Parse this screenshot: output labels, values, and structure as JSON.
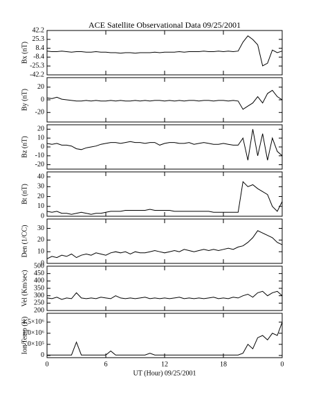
{
  "chart_data": [
    {
      "type": "line",
      "title": "ACE Satellite Observational Data  09/25/2001",
      "ylabel": "Bx (nT)",
      "color": "#000000",
      "x": [
        0,
        0.5,
        1,
        1.5,
        2,
        2.5,
        3,
        3.5,
        4,
        4.5,
        5,
        5.5,
        6,
        6.5,
        7,
        7.5,
        8,
        8.5,
        9,
        9.5,
        10,
        10.5,
        11,
        11.5,
        12,
        12.5,
        13,
        13.5,
        14,
        14.5,
        15,
        15.5,
        16,
        16.5,
        17,
        17.5,
        18,
        18.5,
        19,
        19.5,
        20,
        20.5,
        21,
        21.5,
        22,
        22.5,
        23,
        23.5,
        24
      ],
      "values": [
        3,
        2,
        2,
        3,
        2,
        1,
        2,
        2,
        1,
        1,
        2,
        1,
        1,
        0,
        0,
        -1,
        0,
        0,
        -1,
        0,
        0,
        0,
        1,
        0,
        1,
        1,
        1,
        2,
        1,
        2,
        2,
        2,
        3,
        2,
        2,
        3,
        2,
        3,
        2,
        3,
        20,
        32,
        25,
        15,
        -25,
        -20,
        5,
        0,
        3
      ],
      "xlim": [
        0,
        24
      ],
      "ylim": [
        -42.2,
        42.2
      ],
      "yticks": [
        42.2,
        25.3,
        8.4,
        -8.4,
        -25.3,
        -42.2
      ]
    },
    {
      "type": "line",
      "ylabel": "By (nT)",
      "color": "#000000",
      "x": [
        0,
        0.5,
        1,
        1.5,
        2,
        2.5,
        3,
        3.5,
        4,
        4.5,
        5,
        5.5,
        6,
        6.5,
        7,
        7.5,
        8,
        8.5,
        9,
        9.5,
        10,
        10.5,
        11,
        11.5,
        12,
        12.5,
        13,
        13.5,
        14,
        14.5,
        15,
        15.5,
        16,
        16.5,
        17,
        17.5,
        18,
        18.5,
        19,
        19.5,
        20,
        20.5,
        21,
        21.5,
        22,
        22.5,
        23,
        23.5,
        24
      ],
      "values": [
        3,
        2,
        4,
        1,
        0,
        -1,
        -2,
        -2,
        -1,
        -2,
        -1,
        -2,
        -2,
        -1,
        -2,
        -1,
        -2,
        -2,
        -1,
        -2,
        -1,
        -2,
        -1,
        -1,
        -2,
        -1,
        -2,
        -1,
        -2,
        -1,
        -1,
        -2,
        -1,
        -1,
        -2,
        -1,
        -1,
        -2,
        -1,
        -2,
        -15,
        -10,
        -5,
        5,
        -5,
        10,
        15,
        5,
        0
      ],
      "xlim": [
        0,
        24
      ],
      "ylim": [
        -35,
        35
      ],
      "yticks": [
        -20,
        0,
        20
      ]
    },
    {
      "type": "line",
      "ylabel": "Bz (nT)",
      "color": "#000000",
      "x": [
        0,
        0.5,
        1,
        1.5,
        2,
        2.5,
        3,
        3.5,
        4,
        4.5,
        5,
        5.5,
        6,
        6.5,
        7,
        7.5,
        8,
        8.5,
        9,
        9.5,
        10,
        10.5,
        11,
        11.5,
        12,
        12.5,
        13,
        13.5,
        14,
        14.5,
        15,
        15.5,
        16,
        16.5,
        17,
        17.5,
        18,
        18.5,
        19,
        19.5,
        20,
        20.5,
        21,
        21.5,
        22,
        22.5,
        23,
        23.5,
        24
      ],
      "values": [
        4,
        3,
        4,
        2,
        2,
        1,
        -2,
        -3,
        -1,
        0,
        1,
        3,
        4,
        5,
        5,
        4,
        5,
        6,
        5,
        5,
        4,
        5,
        5,
        2,
        4,
        5,
        5,
        4,
        4,
        5,
        3,
        4,
        5,
        4,
        3,
        3,
        4,
        3,
        2,
        2,
        10,
        -15,
        20,
        -10,
        15,
        -15,
        10,
        -5,
        -10
      ],
      "xlim": [
        0,
        24
      ],
      "ylim": [
        -25,
        25
      ],
      "yticks": [
        -20,
        -10,
        0,
        10,
        20
      ]
    },
    {
      "type": "line",
      "ylabel": "Bt (nT)",
      "color": "#000000",
      "x": [
        0,
        0.5,
        1,
        1.5,
        2,
        2.5,
        3,
        3.5,
        4,
        4.5,
        5,
        5.5,
        6,
        6.5,
        7,
        7.5,
        8,
        8.5,
        9,
        9.5,
        10,
        10.5,
        11,
        11.5,
        12,
        12.5,
        13,
        13.5,
        14,
        14.5,
        15,
        15.5,
        16,
        16.5,
        17,
        17.5,
        18,
        18.5,
        19,
        19.5,
        20,
        20.5,
        21,
        21.5,
        22,
        22.5,
        23,
        23.5,
        24
      ],
      "values": [
        5,
        4,
        5,
        3,
        3,
        2,
        3,
        4,
        3,
        2,
        3,
        3,
        4,
        5,
        5,
        5,
        6,
        6,
        6,
        6,
        6,
        7,
        6,
        6,
        6,
        6,
        5,
        5,
        5,
        5,
        5,
        5,
        5,
        5,
        4,
        4,
        4,
        4,
        4,
        4,
        35,
        30,
        32,
        28,
        25,
        22,
        10,
        5,
        15
      ],
      "xlim": [
        0,
        24
      ],
      "ylim": [
        0,
        45
      ],
      "yticks": [
        0,
        10,
        20,
        30,
        40
      ]
    },
    {
      "type": "line",
      "ylabel": "Den (1/CC)",
      "color": "#000000",
      "x": [
        0,
        0.5,
        1,
        1.5,
        2,
        2.5,
        3,
        3.5,
        4,
        4.5,
        5,
        5.5,
        6,
        6.5,
        7,
        7.5,
        8,
        8.5,
        9,
        9.5,
        10,
        10.5,
        11,
        11.5,
        12,
        12.5,
        13,
        13.5,
        14,
        14.5,
        15,
        15.5,
        16,
        16.5,
        17,
        17.5,
        18,
        18.5,
        19,
        19.5,
        20,
        20.5,
        21,
        21.5,
        22,
        22.5,
        23,
        23.5,
        24
      ],
      "values": [
        4,
        6,
        5,
        7,
        6,
        8,
        5,
        7,
        8,
        7,
        9,
        8,
        7,
        9,
        10,
        9,
        10,
        8,
        10,
        9,
        9,
        10,
        11,
        10,
        9,
        10,
        11,
        10,
        12,
        11,
        10,
        11,
        12,
        11,
        12,
        11,
        12,
        13,
        12,
        14,
        15,
        18,
        22,
        28,
        26,
        24,
        22,
        18,
        16
      ],
      "xlim": [
        0,
        24
      ],
      "ylim": [
        0,
        38
      ],
      "yticks": [
        0,
        10,
        20,
        30
      ]
    },
    {
      "type": "line",
      "ylabel": "Vel (Km/sec)",
      "color": "#000000",
      "x": [
        0,
        0.5,
        1,
        1.5,
        2,
        2.5,
        3,
        3.5,
        4,
        4.5,
        5,
        5.5,
        6,
        6.5,
        7,
        7.5,
        8,
        8.5,
        9,
        9.5,
        10,
        10.5,
        11,
        11.5,
        12,
        12.5,
        13,
        13.5,
        14,
        14.5,
        15,
        15.5,
        16,
        16.5,
        17,
        17.5,
        18,
        18.5,
        19,
        19.5,
        20,
        20.5,
        21,
        21.5,
        22,
        22.5,
        23,
        23.5,
        24
      ],
      "values": [
        285,
        280,
        290,
        275,
        285,
        280,
        320,
        285,
        280,
        285,
        280,
        290,
        285,
        280,
        300,
        285,
        280,
        285,
        280,
        285,
        290,
        280,
        285,
        280,
        285,
        280,
        285,
        290,
        280,
        285,
        280,
        285,
        280,
        285,
        290,
        280,
        285,
        280,
        290,
        285,
        300,
        310,
        290,
        320,
        330,
        300,
        320,
        330,
        300
      ],
      "xlim": [
        0,
        24
      ],
      "ylim": [
        200,
        500
      ],
      "yticks": [
        200,
        250,
        300,
        350,
        400,
        450,
        500
      ]
    },
    {
      "type": "line",
      "ylabel": "Ion Temp (K)",
      "xlabel": "UT (Hour)  09/25/2001",
      "color": "#000000",
      "x": [
        0,
        0.5,
        1,
        1.5,
        2,
        2.5,
        3,
        3.5,
        4,
        4.5,
        5,
        5.5,
        6,
        6.5,
        7,
        7.5,
        8,
        8.5,
        9,
        9.5,
        10,
        10.5,
        11,
        11.5,
        12,
        12.5,
        13,
        13.5,
        14,
        14.5,
        15,
        15.5,
        16,
        16.5,
        17,
        17.5,
        18,
        18.5,
        19,
        19.5,
        20,
        20.5,
        21,
        21.5,
        22,
        22.5,
        23,
        23.5,
        24
      ],
      "values": [
        20000,
        20000,
        20000,
        20000,
        20000,
        20000,
        600000,
        20000,
        20000,
        20000,
        20000,
        20000,
        20000,
        200000,
        20000,
        20000,
        20000,
        20000,
        20000,
        20000,
        20000,
        100000,
        20000,
        20000,
        20000,
        20000,
        20000,
        20000,
        20000,
        20000,
        20000,
        20000,
        20000,
        20000,
        20000,
        20000,
        20000,
        20000,
        20000,
        20000,
        100000,
        500000,
        300000,
        800000,
        900000,
        700000,
        1000000,
        900000,
        1500000
      ],
      "xlim": [
        0,
        24
      ],
      "ylim": [
        -100000,
        1900000
      ],
      "yticks": [
        0,
        {
          "value": 500000,
          "label": "5.0×10⁵"
        },
        {
          "value": 1000000,
          "label": "1.0×10⁶"
        },
        {
          "value": 1500000,
          "label": "1.5×10⁶"
        }
      ],
      "xticks": [
        0,
        6,
        12,
        18,
        {
          "value": 24,
          "label": "0"
        }
      ]
    }
  ]
}
